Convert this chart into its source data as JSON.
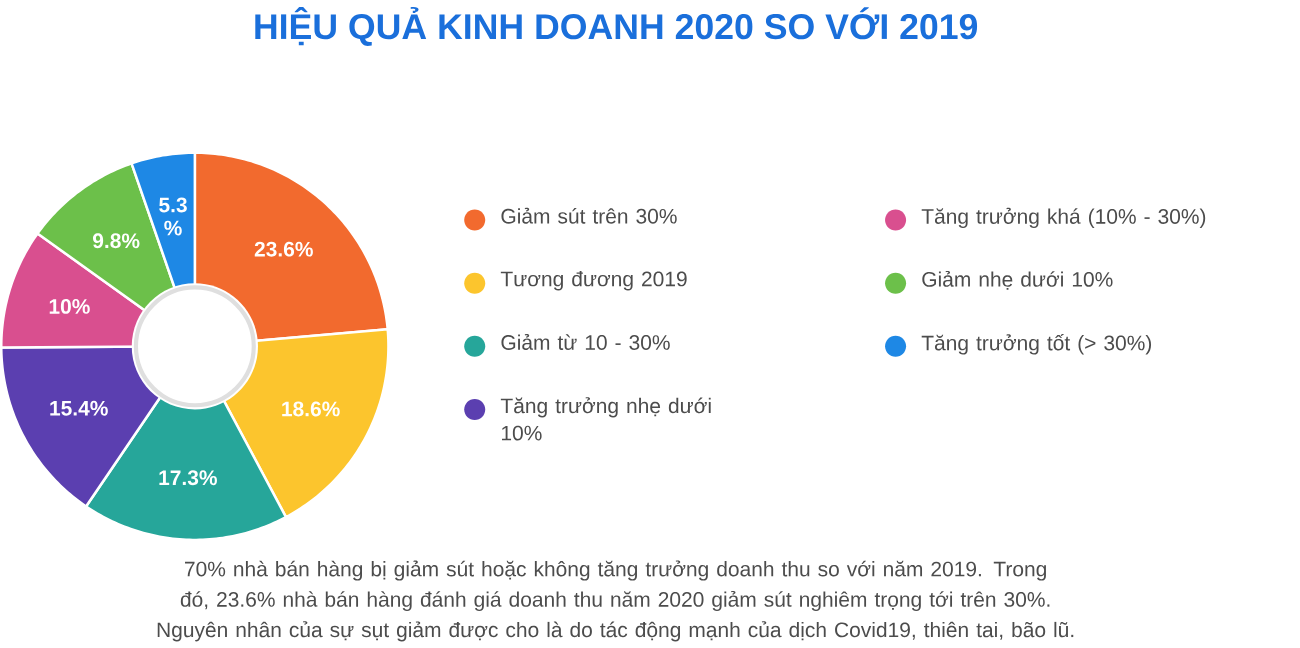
{
  "chart_data": {
    "type": "donut",
    "title": "HIỆU QUẢ KINH DOANH 2020 SO VỚI 2019",
    "categories": [
      "Giảm sút trên 30%",
      "Tương đương 2019",
      "Giảm từ 10 - 30%",
      "Tăng trưởng nhẹ dưới 10%",
      "Tăng trưởng khá (10% - 30%)",
      "Giảm nhẹ dưới 10%",
      "Tăng trưởng tốt (> 30%)"
    ],
    "values": [
      23.6,
      18.6,
      17.3,
      15.4,
      10,
      9.8,
      5.3
    ],
    "colors": [
      "#f26a2e",
      "#fcc52d",
      "#26a69a",
      "#5b3fb0",
      "#d94f8f",
      "#6cc04a",
      "#1e88e5"
    ],
    "value_labels": [
      "23.6%",
      "18.6%",
      "17.3%",
      "15.4%",
      "10%",
      "9.8%",
      "5.3 %"
    ],
    "legend": "right",
    "annotations": [
      "70% nhà bán hàng bị giảm sút hoặc không tăng trưởng doanh thu so với năm 2019. Trong đó, 23.6% nhà bán hàng đánh giá doanh thu năm 2020 giảm sút nghiêm trọng tới trên 30%. Nguyên nhân của sự sụt giảm được cho là do tác động mạnh của dịch Covid19, thiên tai, bão lũ."
    ]
  }
}
